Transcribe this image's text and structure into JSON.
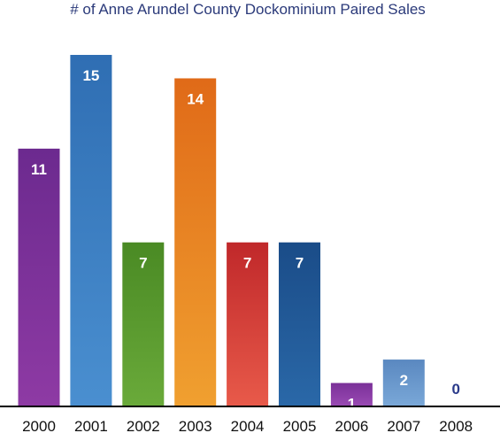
{
  "chart_data": {
    "type": "bar",
    "title": "# of Anne Arundel County Dockominium Paired Sales",
    "xlabel": "",
    "ylabel": "",
    "categories": [
      "2000",
      "2001",
      "2002",
      "2003",
      "2004",
      "2005",
      "2006",
      "2007",
      "2008"
    ],
    "values": [
      11,
      15,
      7,
      14,
      7,
      7,
      1,
      2,
      0
    ],
    "ylim": [
      0,
      15
    ],
    "grid": false,
    "legend": "none",
    "bar_colors": [
      [
        "#8e3aa4",
        "#6c2a8f"
      ],
      [
        "#4a8fd0",
        "#2f6eb3"
      ],
      [
        "#6aaa3a",
        "#4a8a24"
      ],
      [
        "#f0a030",
        "#e06a18"
      ],
      [
        "#e85a4a",
        "#c0282a"
      ],
      [
        "#2a68a8",
        "#1a4c88"
      ],
      [
        "#9a4ab4",
        "#7a3098"
      ],
      [
        "#7aa8d8",
        "#5a88c0"
      ],
      [
        "#2a3a8a",
        "#2a3a8a"
      ]
    ],
    "label_color": "#ffffff",
    "zero_label_color": "#2a3a8a",
    "axis_color": "#000000"
  }
}
